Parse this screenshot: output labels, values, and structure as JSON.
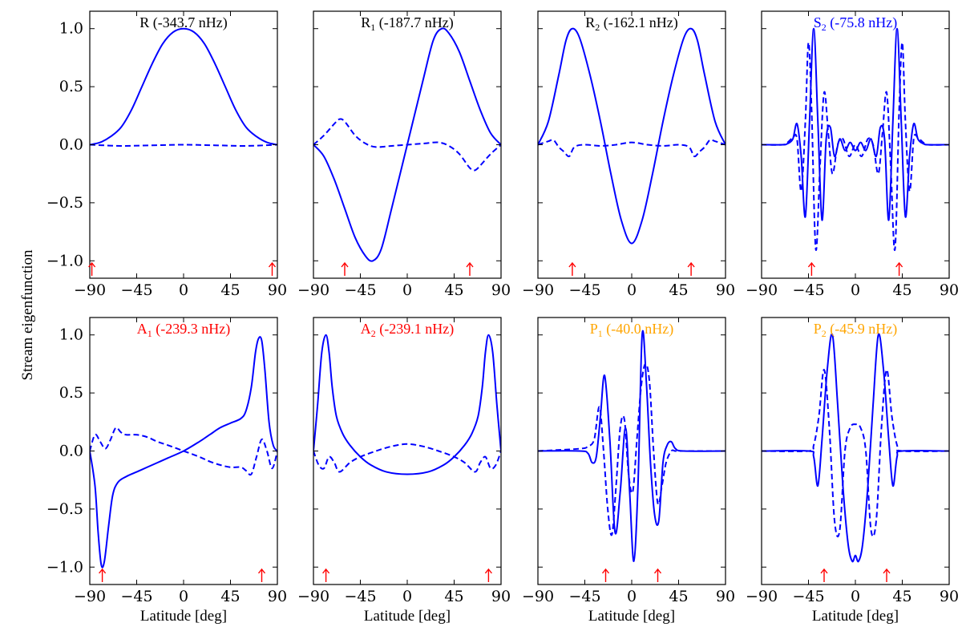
{
  "figure": {
    "ylabel": "Stream eigenfunction",
    "xlabel": "Latitude [deg]"
  },
  "chart_data": [
    {
      "type": "line",
      "title": "R (-343.7 nHz)",
      "title_color": "#000000",
      "xlim": [
        -90,
        90
      ],
      "ylim": [
        -1.15,
        1.15
      ],
      "xticks": [
        -90,
        -45,
        0,
        45,
        90
      ],
      "yticks": [
        -1.0,
        -0.5,
        0.0,
        0.5,
        1.0
      ],
      "xlabel": "",
      "ylabel": "Stream eigenfunction",
      "arrows": [
        -88,
        85
      ],
      "series": [
        {
          "name": "solid",
          "style": "solid",
          "color": "#0000ff",
          "x": [
            -90,
            -80,
            -70,
            -60,
            -50,
            -40,
            -30,
            -20,
            -10,
            0,
            10,
            20,
            30,
            40,
            50,
            60,
            70,
            80,
            90
          ],
          "y": [
            0.0,
            0.02,
            0.07,
            0.15,
            0.3,
            0.5,
            0.7,
            0.87,
            0.97,
            1.0,
            0.97,
            0.87,
            0.7,
            0.5,
            0.3,
            0.15,
            0.07,
            0.02,
            0.0
          ]
        },
        {
          "name": "dashed",
          "style": "dashed",
          "color": "#0000ff",
          "x": [
            -90,
            -60,
            -30,
            0,
            30,
            60,
            90
          ],
          "y": [
            0.0,
            -0.01,
            -0.005,
            0.0,
            -0.005,
            -0.01,
            0.0
          ]
        }
      ]
    },
    {
      "type": "line",
      "title": "R1 (-187.7 nHz)",
      "title_main": "R",
      "title_sub": "1",
      "title_rest": " (-187.7 nHz)",
      "title_color": "#000000",
      "xlim": [
        -90,
        90
      ],
      "ylim": [
        -1.15,
        1.15
      ],
      "xticks": [
        -90,
        -45,
        0,
        45,
        90
      ],
      "yticks": [
        -1.0,
        -0.5,
        0.0,
        0.5,
        1.0
      ],
      "arrows": [
        -60,
        60
      ],
      "series": [
        {
          "name": "solid",
          "style": "solid",
          "color": "#0000ff",
          "x": [
            -90,
            -80,
            -70,
            -60,
            -50,
            -40,
            -33,
            -25,
            -15,
            0,
            15,
            25,
            33,
            40,
            50,
            60,
            70,
            80,
            90
          ],
          "y": [
            0.0,
            -0.1,
            -0.3,
            -0.55,
            -0.8,
            -0.96,
            -1.0,
            -0.9,
            -0.55,
            0.0,
            0.55,
            0.9,
            1.0,
            0.96,
            0.8,
            0.55,
            0.3,
            0.1,
            0.0
          ]
        },
        {
          "name": "dashed",
          "style": "dashed",
          "color": "#0000ff",
          "x": [
            -90,
            -80,
            -70,
            -65,
            -60,
            -50,
            -40,
            -30,
            -15,
            0,
            15,
            30,
            40,
            50,
            60,
            65,
            70,
            80,
            90
          ],
          "y": [
            0.0,
            0.08,
            0.18,
            0.22,
            0.2,
            0.08,
            0.01,
            -0.02,
            -0.01,
            0.0,
            0.01,
            0.02,
            -0.01,
            -0.08,
            -0.2,
            -0.22,
            -0.18,
            -0.08,
            0.0
          ]
        }
      ]
    },
    {
      "type": "line",
      "title": "R2 (-162.1 nHz)",
      "title_main": "R",
      "title_sub": "2",
      "title_rest": " (-162.1 nHz)",
      "title_color": "#000000",
      "xlim": [
        -90,
        90
      ],
      "ylim": [
        -1.15,
        1.15
      ],
      "xticks": [
        -90,
        -45,
        0,
        45,
        90
      ],
      "yticks": [
        -1.0,
        -0.5,
        0.0,
        0.5,
        1.0
      ],
      "arrows": [
        -57,
        57
      ],
      "series": [
        {
          "name": "solid",
          "style": "solid",
          "color": "#0000ff",
          "x": [
            -90,
            -80,
            -70,
            -63,
            -57,
            -50,
            -40,
            -30,
            -20,
            -10,
            0,
            10,
            20,
            30,
            40,
            50,
            57,
            63,
            70,
            80,
            90
          ],
          "y": [
            0.0,
            0.2,
            0.6,
            0.9,
            1.0,
            0.92,
            0.6,
            0.2,
            -0.25,
            -0.65,
            -0.85,
            -0.65,
            -0.25,
            0.2,
            0.6,
            0.92,
            1.0,
            0.9,
            0.6,
            0.2,
            0.0
          ]
        },
        {
          "name": "dashed",
          "style": "dashed",
          "color": "#0000ff",
          "x": [
            -90,
            -80,
            -75,
            -70,
            -65,
            -60,
            -55,
            -45,
            -30,
            -15,
            0,
            15,
            30,
            45,
            55,
            60,
            65,
            70,
            75,
            80,
            90
          ],
          "y": [
            0.0,
            0.03,
            0.04,
            -0.02,
            -0.06,
            -0.1,
            -0.02,
            0.0,
            -0.01,
            0.0,
            0.02,
            0.0,
            -0.01,
            0.0,
            -0.02,
            -0.1,
            -0.06,
            -0.02,
            0.04,
            0.03,
            0.0
          ]
        }
      ]
    },
    {
      "type": "line",
      "title": "S2 (-75.8 nHz)",
      "title_main": "S",
      "title_sub": "2",
      "title_rest": " (-75.8 nHz)",
      "title_color": "#0000ff",
      "xlim": [
        -90,
        90
      ],
      "ylim": [
        -1.15,
        1.15
      ],
      "xticks": [
        -90,
        -45,
        0,
        45,
        90
      ],
      "yticks": [
        -1.0,
        -0.5,
        0.0,
        0.5,
        1.0
      ],
      "arrows": [
        -42,
        42
      ],
      "series": [
        {
          "name": "solid",
          "style": "solid",
          "color": "#0000ff",
          "x": [
            -90,
            -70,
            -65,
            -60,
            -56,
            -52,
            -48,
            -44,
            -40,
            -36,
            -32,
            -28,
            -24,
            -20,
            -15,
            -10,
            -5,
            0,
            5,
            10,
            15,
            20,
            24,
            28,
            32,
            36,
            40,
            44,
            48,
            52,
            56,
            60,
            65,
            70,
            90
          ],
          "y": [
            0.0,
            0.0,
            0.01,
            0.05,
            0.18,
            -0.1,
            -0.62,
            0.2,
            1.0,
            0.2,
            -0.65,
            0.05,
            0.15,
            -0.1,
            0.05,
            -0.05,
            0.02,
            -0.05,
            0.02,
            -0.05,
            0.05,
            -0.1,
            0.15,
            0.05,
            -0.65,
            0.2,
            1.0,
            0.2,
            -0.62,
            -0.1,
            0.18,
            0.05,
            0.01,
            0.0,
            0.0
          ]
        },
        {
          "name": "dashed",
          "style": "dashed",
          "color": "#0000ff",
          "x": [
            -90,
            -70,
            -65,
            -60,
            -56,
            -52,
            -48,
            -45,
            -42,
            -38,
            -34,
            -30,
            -26,
            -22,
            -17,
            -12,
            -6,
            0,
            6,
            12,
            17,
            22,
            26,
            30,
            34,
            38,
            42,
            45,
            48,
            52,
            56,
            60,
            65,
            70,
            90
          ],
          "y": [
            0.0,
            0.0,
            0.02,
            0.06,
            0.05,
            -0.4,
            0.2,
            0.88,
            0.3,
            -0.9,
            -0.2,
            0.45,
            0.1,
            -0.25,
            0.0,
            0.05,
            -0.1,
            0.0,
            -0.1,
            0.05,
            0.0,
            -0.25,
            0.1,
            0.45,
            -0.2,
            -0.9,
            0.3,
            0.88,
            0.2,
            -0.4,
            0.05,
            0.06,
            0.02,
            0.0,
            0.0
          ]
        }
      ]
    },
    {
      "type": "line",
      "title": "A1 (-239.3 nHz)",
      "title_main": "A",
      "title_sub": "1",
      "title_rest": " (-239.3 nHz)",
      "title_color": "#ff0000",
      "xlim": [
        -90,
        90
      ],
      "ylim": [
        -1.15,
        1.15
      ],
      "xticks": [
        -90,
        -45,
        0,
        45,
        90
      ],
      "yticks": [
        -1.0,
        -0.5,
        0.0,
        0.5,
        1.0
      ],
      "xlabel": "Latitude [deg]",
      "arrows": [
        -78,
        75
      ],
      "series": [
        {
          "name": "solid",
          "style": "solid",
          "color": "#0000ff",
          "x": [
            -90,
            -85,
            -82,
            -79,
            -76,
            -72,
            -68,
            -63,
            -55,
            -45,
            -35,
            -25,
            -15,
            0,
            15,
            25,
            35,
            45,
            55,
            60,
            65,
            69,
            72,
            75,
            78,
            82,
            86,
            90
          ],
          "y": [
            0.0,
            -0.3,
            -0.7,
            -0.98,
            -0.95,
            -0.65,
            -0.38,
            -0.27,
            -0.22,
            -0.18,
            -0.14,
            -0.1,
            -0.06,
            0.0,
            0.08,
            0.14,
            0.2,
            0.24,
            0.28,
            0.35,
            0.55,
            0.85,
            0.97,
            0.95,
            0.7,
            0.25,
            0.05,
            0.0
          ]
        },
        {
          "name": "dashed",
          "style": "dashed",
          "color": "#0000ff",
          "x": [
            -90,
            -85,
            -80,
            -75,
            -70,
            -65,
            -60,
            -55,
            -45,
            -35,
            -25,
            -15,
            0,
            15,
            25,
            35,
            45,
            55,
            60,
            65,
            70,
            75,
            80,
            85,
            90
          ],
          "y": [
            0.0,
            0.14,
            0.08,
            0.02,
            0.1,
            0.2,
            0.16,
            0.14,
            0.14,
            0.12,
            0.08,
            0.05,
            0.0,
            -0.05,
            -0.09,
            -0.12,
            -0.14,
            -0.14,
            -0.17,
            -0.2,
            -0.05,
            0.1,
            0.0,
            -0.15,
            0.0
          ]
        }
      ]
    },
    {
      "type": "line",
      "title": "A2 (-239.1 nHz)",
      "title_main": "A",
      "title_sub": "2",
      "title_rest": " (-239.1 nHz)",
      "title_color": "#ff0000",
      "xlim": [
        -90,
        90
      ],
      "ylim": [
        -1.15,
        1.15
      ],
      "xticks": [
        -90,
        -45,
        0,
        45,
        90
      ],
      "yticks": [
        -1.0,
        -0.5,
        0.0,
        0.5,
        1.0
      ],
      "xlabel": "Latitude [deg]",
      "arrows": [
        -78,
        78
      ],
      "series": [
        {
          "name": "solid",
          "style": "solid",
          "color": "#0000ff",
          "x": [
            -90,
            -86,
            -82,
            -78,
            -75,
            -72,
            -68,
            -62,
            -55,
            -45,
            -35,
            -20,
            0,
            20,
            35,
            45,
            55,
            62,
            68,
            72,
            75,
            78,
            82,
            86,
            90
          ],
          "y": [
            0.0,
            0.4,
            0.85,
            1.0,
            0.85,
            0.55,
            0.3,
            0.15,
            0.05,
            -0.05,
            -0.12,
            -0.18,
            -0.2,
            -0.18,
            -0.12,
            -0.05,
            0.05,
            0.15,
            0.3,
            0.55,
            0.85,
            1.0,
            0.85,
            0.4,
            0.0
          ]
        },
        {
          "name": "dashed",
          "style": "dashed",
          "color": "#0000ff",
          "x": [
            -90,
            -85,
            -80,
            -75,
            -70,
            -65,
            -55,
            -45,
            -30,
            -15,
            0,
            15,
            30,
            45,
            55,
            65,
            70,
            75,
            80,
            85,
            90
          ],
          "y": [
            0.0,
            -0.12,
            -0.15,
            -0.05,
            -0.1,
            -0.18,
            -0.1,
            -0.05,
            0.0,
            0.04,
            0.06,
            0.04,
            0.0,
            -0.05,
            -0.1,
            -0.18,
            -0.1,
            -0.05,
            -0.15,
            -0.12,
            0.0
          ]
        }
      ]
    },
    {
      "type": "line",
      "title": "P1 (-40.0 nHz)",
      "title_main": "P",
      "title_sub": "1",
      "title_rest": " (-40.0 nHz)",
      "title_color": "#ffa500",
      "xlim": [
        -90,
        90
      ],
      "ylim": [
        -1.15,
        1.15
      ],
      "xticks": [
        -90,
        -45,
        0,
        45,
        90
      ],
      "yticks": [
        -1.0,
        -0.5,
        0.0,
        0.5,
        1.0
      ],
      "xlabel": "Latitude [deg]",
      "arrows": [
        -25,
        25
      ],
      "series": [
        {
          "name": "solid",
          "style": "solid",
          "color": "#0000ff",
          "x": [
            -90,
            -50,
            -42,
            -38,
            -34,
            -30,
            -26,
            -21,
            -16,
            -11,
            -6,
            -2,
            2,
            6,
            10,
            14,
            18,
            22,
            26,
            30,
            34,
            38,
            42,
            50,
            90
          ],
          "y": [
            0.0,
            0.0,
            -0.02,
            -0.1,
            -0.05,
            0.3,
            0.65,
            0.1,
            -0.7,
            -0.35,
            0.2,
            -0.35,
            -0.95,
            -0.3,
            1.0,
            0.6,
            -0.1,
            -0.55,
            -0.6,
            -0.1,
            0.05,
            0.08,
            0.02,
            0.0,
            0.0
          ]
        },
        {
          "name": "dashed",
          "style": "dashed",
          "color": "#0000ff",
          "x": [
            -90,
            -50,
            -42,
            -36,
            -31,
            -27,
            -23,
            -19,
            -15,
            -11,
            -7,
            -3,
            1,
            5,
            9,
            13,
            17,
            21,
            25,
            29,
            33,
            38,
            42,
            50,
            90
          ],
          "y": [
            0.0,
            0.02,
            0.04,
            0.1,
            0.38,
            0.0,
            -0.5,
            -0.72,
            -0.3,
            0.2,
            0.27,
            -0.2,
            -0.35,
            0.1,
            0.55,
            0.75,
            0.6,
            0.0,
            -0.45,
            -0.3,
            -0.1,
            0.0,
            0.0,
            0.0,
            0.0
          ]
        }
      ]
    },
    {
      "type": "line",
      "title": "P2 (-45.9 nHz)",
      "title_main": "P",
      "title_sub": "2",
      "title_rest": " (-45.9 nHz)",
      "title_color": "#ffa500",
      "xlim": [
        -90,
        90
      ],
      "ylim": [
        -1.15,
        1.15
      ],
      "xticks": [
        -90,
        -45,
        0,
        45,
        90
      ],
      "yticks": [
        -1.0,
        -0.5,
        0.0,
        0.5,
        1.0
      ],
      "xlabel": "Latitude [deg]",
      "arrows": [
        -30,
        30
      ],
      "series": [
        {
          "name": "solid",
          "style": "solid",
          "color": "#0000ff",
          "x": [
            -90,
            -45,
            -40,
            -36,
            -32,
            -27,
            -22,
            -17,
            -12,
            -7,
            -3,
            0,
            3,
            7,
            12,
            17,
            22,
            27,
            32,
            36,
            40,
            45,
            90
          ],
          "y": [
            0.0,
            0.0,
            -0.05,
            -0.3,
            0.1,
            0.7,
            1.0,
            0.4,
            -0.3,
            -0.8,
            -0.95,
            -0.9,
            -0.95,
            -0.8,
            -0.3,
            0.4,
            1.0,
            0.7,
            0.1,
            -0.3,
            -0.05,
            0.0,
            0.0
          ]
        },
        {
          "name": "dashed",
          "style": "dashed",
          "color": "#0000ff",
          "x": [
            -90,
            -45,
            -40,
            -35,
            -30,
            -25,
            -20,
            -15,
            -10,
            -5,
            0,
            5,
            10,
            15,
            20,
            25,
            30,
            35,
            40,
            45,
            90
          ],
          "y": [
            0.0,
            0.0,
            0.05,
            0.3,
            0.7,
            0.2,
            -0.6,
            -0.68,
            0.0,
            0.2,
            0.23,
            0.2,
            0.0,
            -0.68,
            -0.6,
            0.2,
            0.7,
            0.3,
            0.05,
            0.0,
            0.0
          ]
        }
      ]
    }
  ]
}
